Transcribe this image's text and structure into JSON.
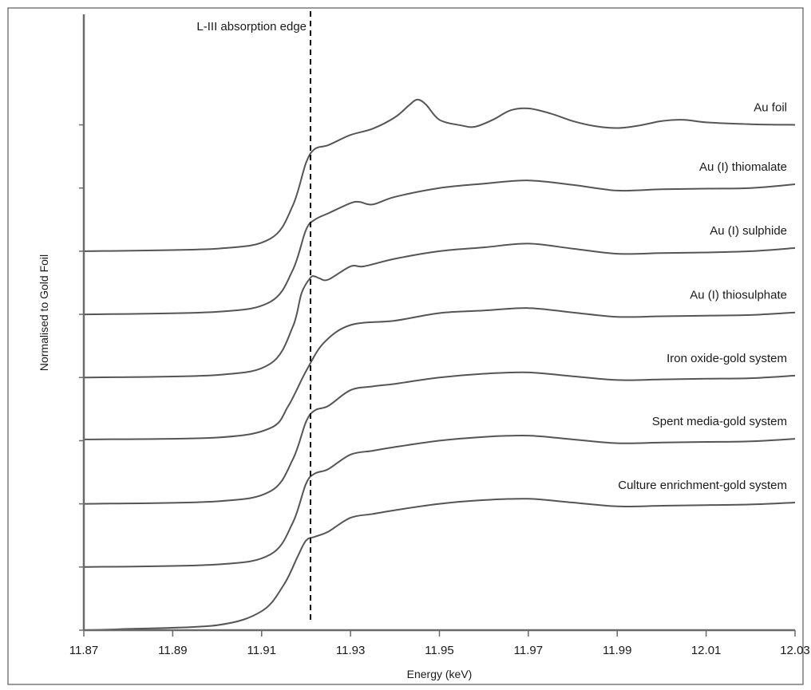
{
  "chart_data": {
    "type": "line",
    "title": "",
    "xlabel": "Energy (keV)",
    "ylabel": "Normalised to Gold Foil",
    "xlim": [
      11.87,
      12.03
    ],
    "x_ticks": [
      "11.87",
      "11.89",
      "11.91",
      "11.93",
      "11.95",
      "11.97",
      "11.99",
      "12.01",
      "12.03"
    ],
    "y_tick_marks": 9,
    "grid": false,
    "legend": "none (series labelled inline at right end of each curve)",
    "annotation": {
      "text": "L-III absorption edge",
      "x": 11.921,
      "style": "dashed vertical line"
    },
    "curve_color": "#555555",
    "series": [
      {
        "name": "Au foil",
        "x": [
          11.87,
          11.9,
          11.912,
          11.917,
          11.92,
          11.922,
          11.925,
          11.93,
          11.935,
          11.94,
          11.943,
          11.945,
          11.947,
          11.95,
          11.955,
          11.958,
          11.962,
          11.966,
          11.97,
          11.975,
          11.98,
          11.985,
          11.99,
          11.995,
          12.0,
          12.005,
          12.01,
          12.02,
          12.03
        ],
        "y": [
          6.0,
          6.04,
          6.2,
          6.72,
          7.4,
          7.62,
          7.68,
          7.84,
          7.94,
          8.12,
          8.3,
          8.4,
          8.32,
          8.08,
          7.99,
          7.97,
          8.08,
          8.23,
          8.26,
          8.18,
          8.06,
          7.98,
          7.95,
          7.99,
          8.06,
          8.08,
          8.04,
          8.01,
          8.0
        ]
      },
      {
        "name": "Au (I) thiomalate",
        "x": [
          11.87,
          11.9,
          11.912,
          11.917,
          11.92,
          11.922,
          11.925,
          11.93,
          11.932,
          11.935,
          11.94,
          11.95,
          11.96,
          11.97,
          11.98,
          11.99,
          12.0,
          12.01,
          12.02,
          12.03
        ],
        "y": [
          5.0,
          5.04,
          5.2,
          5.7,
          6.34,
          6.5,
          6.6,
          6.76,
          6.78,
          6.74,
          6.86,
          7.0,
          7.07,
          7.12,
          7.05,
          6.96,
          6.98,
          6.99,
          7.0,
          7.06
        ]
      },
      {
        "name": "Au (I) sulphide",
        "x": [
          11.87,
          11.9,
          11.912,
          11.917,
          11.919,
          11.921,
          11.922,
          11.923,
          11.925,
          11.93,
          11.933,
          11.94,
          11.95,
          11.96,
          11.97,
          11.98,
          11.99,
          12.0,
          12.01,
          12.02,
          12.03
        ],
        "y": [
          4.0,
          4.04,
          4.22,
          4.8,
          5.34,
          5.58,
          5.6,
          5.57,
          5.55,
          5.76,
          5.76,
          5.88,
          6.0,
          6.06,
          6.12,
          6.04,
          5.96,
          5.97,
          5.98,
          6.0,
          6.05
        ]
      },
      {
        "name": "Au (I) thiosulphate",
        "x": [
          11.87,
          11.9,
          11.912,
          11.916,
          11.92,
          11.924,
          11.93,
          11.94,
          11.95,
          11.96,
          11.97,
          11.98,
          11.99,
          12.0,
          12.01,
          12.02,
          12.03
        ],
        "y": [
          3.02,
          3.05,
          3.2,
          3.55,
          4.1,
          4.55,
          4.83,
          4.9,
          5.02,
          5.06,
          5.1,
          5.03,
          4.96,
          4.97,
          4.98,
          4.99,
          5.03
        ]
      },
      {
        "name": "Iron oxide-gold system",
        "x": [
          11.87,
          11.9,
          11.912,
          11.917,
          11.92,
          11.922,
          11.925,
          11.93,
          11.935,
          11.94,
          11.95,
          11.96,
          11.97,
          11.98,
          11.99,
          12.0,
          12.01,
          12.02,
          12.03
        ],
        "y": [
          2.0,
          2.04,
          2.2,
          2.7,
          3.3,
          3.48,
          3.55,
          3.8,
          3.86,
          3.9,
          4.0,
          4.06,
          4.08,
          4.02,
          3.96,
          3.97,
          3.98,
          3.99,
          4.03
        ]
      },
      {
        "name": "Spent media-gold system",
        "x": [
          11.87,
          11.9,
          11.912,
          11.917,
          11.92,
          11.922,
          11.925,
          11.93,
          11.935,
          11.94,
          11.95,
          11.96,
          11.97,
          11.98,
          11.99,
          12.0,
          12.01,
          12.02,
          12.03
        ],
        "y": [
          1.0,
          1.04,
          1.2,
          1.7,
          2.32,
          2.48,
          2.55,
          2.78,
          2.84,
          2.9,
          3.0,
          3.06,
          3.08,
          3.02,
          2.96,
          2.97,
          2.98,
          2.99,
          3.03
        ]
      },
      {
        "name": "Culture enrichment-gold system",
        "x": [
          11.87,
          11.88,
          11.9,
          11.91,
          11.915,
          11.918,
          11.92,
          11.922,
          11.925,
          11.93,
          11.935,
          11.94,
          11.95,
          11.96,
          11.97,
          11.98,
          11.99,
          12.0,
          12.01,
          12.02,
          12.03
        ],
        "y": [
          0.0,
          0.02,
          0.08,
          0.3,
          0.72,
          1.15,
          1.42,
          1.48,
          1.56,
          1.78,
          1.84,
          1.9,
          2.0,
          2.06,
          2.08,
          2.02,
          1.96,
          1.97,
          1.98,
          1.99,
          2.02
        ]
      }
    ]
  }
}
